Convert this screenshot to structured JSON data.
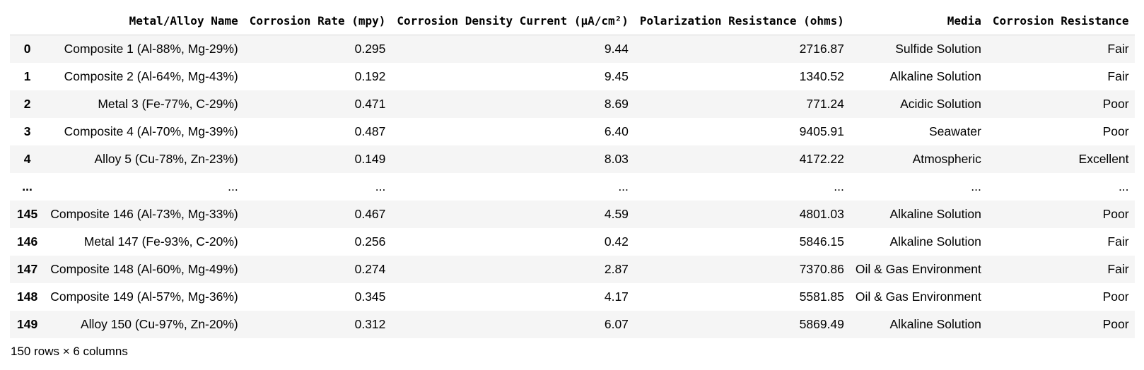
{
  "table": {
    "columns": [
      "Metal/Alloy Name",
      "Corrosion Rate (mpy)",
      "Corrosion Density Current (µA/cm²)",
      "Polarization Resistance (ohms)",
      "Media",
      "Corrosion Resistance"
    ],
    "rows": [
      {
        "index": "0",
        "cells": [
          "Composite 1 (Al-88%, Mg-29%)",
          "0.295",
          "9.44",
          "2716.87",
          "Sulfide Solution",
          "Fair"
        ]
      },
      {
        "index": "1",
        "cells": [
          "Composite 2 (Al-64%, Mg-43%)",
          "0.192",
          "9.45",
          "1340.52",
          "Alkaline Solution",
          "Fair"
        ]
      },
      {
        "index": "2",
        "cells": [
          "Metal 3 (Fe-77%, C-29%)",
          "0.471",
          "8.69",
          "771.24",
          "Acidic Solution",
          "Poor"
        ]
      },
      {
        "index": "3",
        "cells": [
          "Composite 4 (Al-70%, Mg-39%)",
          "0.487",
          "6.40",
          "9405.91",
          "Seawater",
          "Poor"
        ]
      },
      {
        "index": "4",
        "cells": [
          "Alloy 5 (Cu-78%, Zn-23%)",
          "0.149",
          "8.03",
          "4172.22",
          "Atmospheric",
          "Excellent"
        ]
      },
      {
        "index": "...",
        "cells": [
          "...",
          "...",
          "...",
          "...",
          "...",
          "..."
        ]
      },
      {
        "index": "145",
        "cells": [
          "Composite 146 (Al-73%, Mg-33%)",
          "0.467",
          "4.59",
          "4801.03",
          "Alkaline Solution",
          "Poor"
        ]
      },
      {
        "index": "146",
        "cells": [
          "Metal 147 (Fe-93%, C-20%)",
          "0.256",
          "0.42",
          "5846.15",
          "Alkaline Solution",
          "Fair"
        ]
      },
      {
        "index": "147",
        "cells": [
          "Composite 148 (Al-60%, Mg-49%)",
          "0.274",
          "2.87",
          "7370.86",
          "Oil & Gas Environment",
          "Fair"
        ]
      },
      {
        "index": "148",
        "cells": [
          "Composite 149 (Al-57%, Mg-36%)",
          "0.345",
          "4.17",
          "5581.85",
          "Oil & Gas Environment",
          "Poor"
        ]
      },
      {
        "index": "149",
        "cells": [
          "Alloy 150 (Cu-97%, Zn-20%)",
          "0.312",
          "6.07",
          "5869.49",
          "Alkaline Solution",
          "Poor"
        ]
      }
    ]
  },
  "footer": {
    "shape_text": "150 rows × 6 columns"
  }
}
